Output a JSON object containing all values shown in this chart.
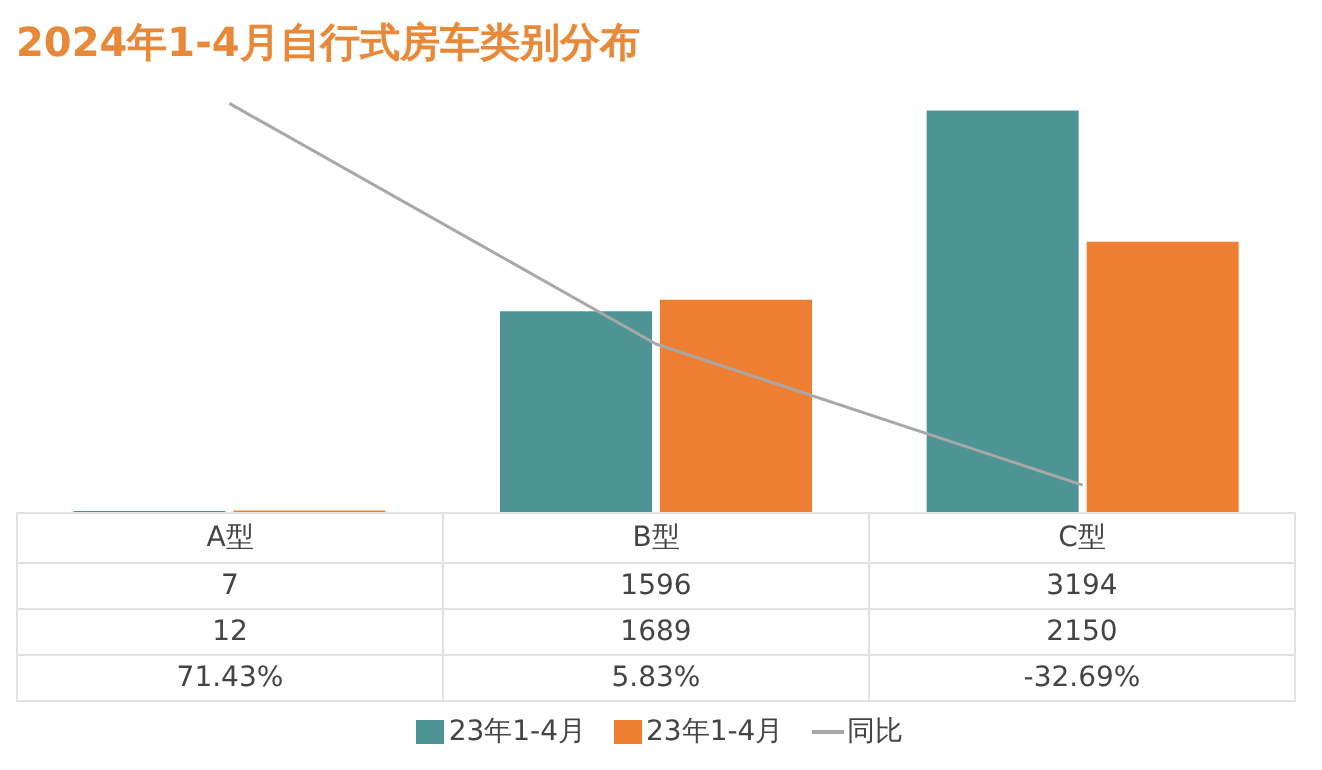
{
  "chart_data": {
    "type": "bar",
    "title": "2024年1-4月自行式房车类别分布",
    "categories": [
      "A型",
      "B型",
      "C型"
    ],
    "series": [
      {
        "name": "23年1-4月",
        "color": "#4f9494",
        "values": [
          7,
          1596,
          3194
        ],
        "value_labels": [
          "7",
          "1596",
          "3194"
        ]
      },
      {
        "name": "23年1-4月",
        "color": "#ee7f32",
        "values": [
          12,
          1689,
          2150
        ],
        "value_labels": [
          "12",
          "1689",
          "2150"
        ]
      },
      {
        "name": "同比",
        "type": "line",
        "axis": "y2",
        "color": "#a8a8a8",
        "values": [
          71.43,
          5.83,
          -32.69
        ],
        "value_labels": [
          "71.43%",
          "5.83%",
          "-32.69%"
        ]
      }
    ],
    "marker": "none",
    "legend": "bottom"
  }
}
